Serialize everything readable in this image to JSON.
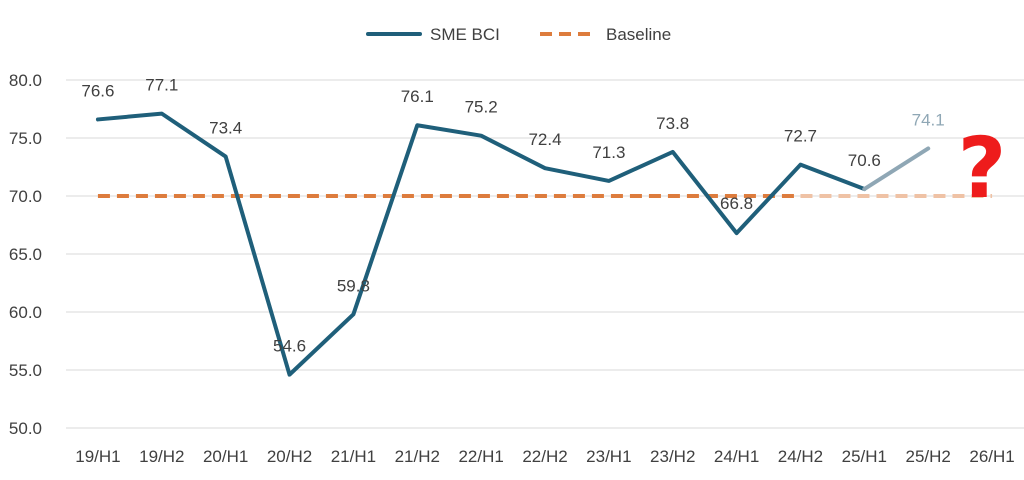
{
  "chart_data": {
    "type": "line",
    "title": "",
    "xlabel": "",
    "ylabel": "",
    "categories": [
      "19/H1",
      "19/H2",
      "20/H1",
      "20/H2",
      "21/H1",
      "21/H2",
      "22/H1",
      "22/H2",
      "23/H1",
      "23/H2",
      "24/H1",
      "24/H2",
      "25/H1",
      "25/H2",
      "26/H1"
    ],
    "ylim": [
      50,
      80
    ],
    "yticks": [
      "50.0",
      "55.0",
      "60.0",
      "65.0",
      "70.0",
      "75.0",
      "80.0"
    ],
    "grid": "horizontal",
    "legend_position": "top-center",
    "series": [
      {
        "name": "SME BCI",
        "values": [
          76.6,
          77.1,
          73.4,
          54.6,
          59.8,
          76.1,
          75.2,
          72.4,
          71.3,
          73.8,
          66.8,
          72.7,
          70.6,
          74.1,
          null
        ],
        "labels": [
          "76.6",
          "77.1",
          "73.4",
          "54.6",
          "59.8",
          "76.1",
          "75.2",
          "72.4",
          "71.3",
          "73.8",
          "66.8",
          "72.7",
          "70.6",
          "74.1",
          ""
        ],
        "projected_from_index": 12,
        "color": "#1f5f7a",
        "projected_color": "#8fa7b5",
        "style": "solid"
      },
      {
        "name": "Baseline",
        "values": [
          70,
          70,
          70,
          70,
          70,
          70,
          70,
          70,
          70,
          70,
          70,
          70,
          70,
          70,
          70
        ],
        "projected_from_index": 12,
        "color": "#dd7c3d",
        "projected_color": "#efc2a5",
        "style": "dashed"
      }
    ],
    "annotation": {
      "text": "?",
      "color": "#ee1c1c"
    }
  }
}
